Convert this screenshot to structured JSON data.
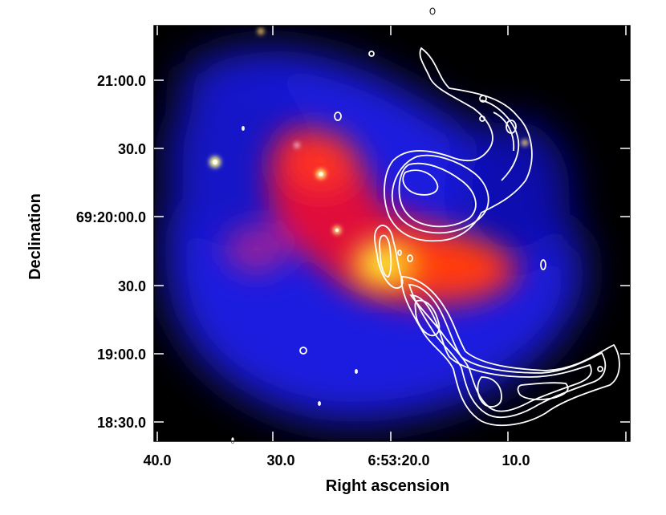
{
  "figure": {
    "xlabel": "Right ascension",
    "ylabel": "Declination",
    "x_ticks": [
      "40.0",
      "30.0",
      "6:53:20.0",
      "10.0"
    ],
    "y_ticks": [
      "21:00.0",
      "30.0",
      "69:20:00.0",
      "30.0",
      "19:00.0",
      "18:30.0"
    ],
    "contour_color": "#ffffff",
    "colormap": [
      "#000000",
      "#0000ff",
      "#ff0000",
      "#ffff00",
      "#ffffff"
    ]
  }
}
